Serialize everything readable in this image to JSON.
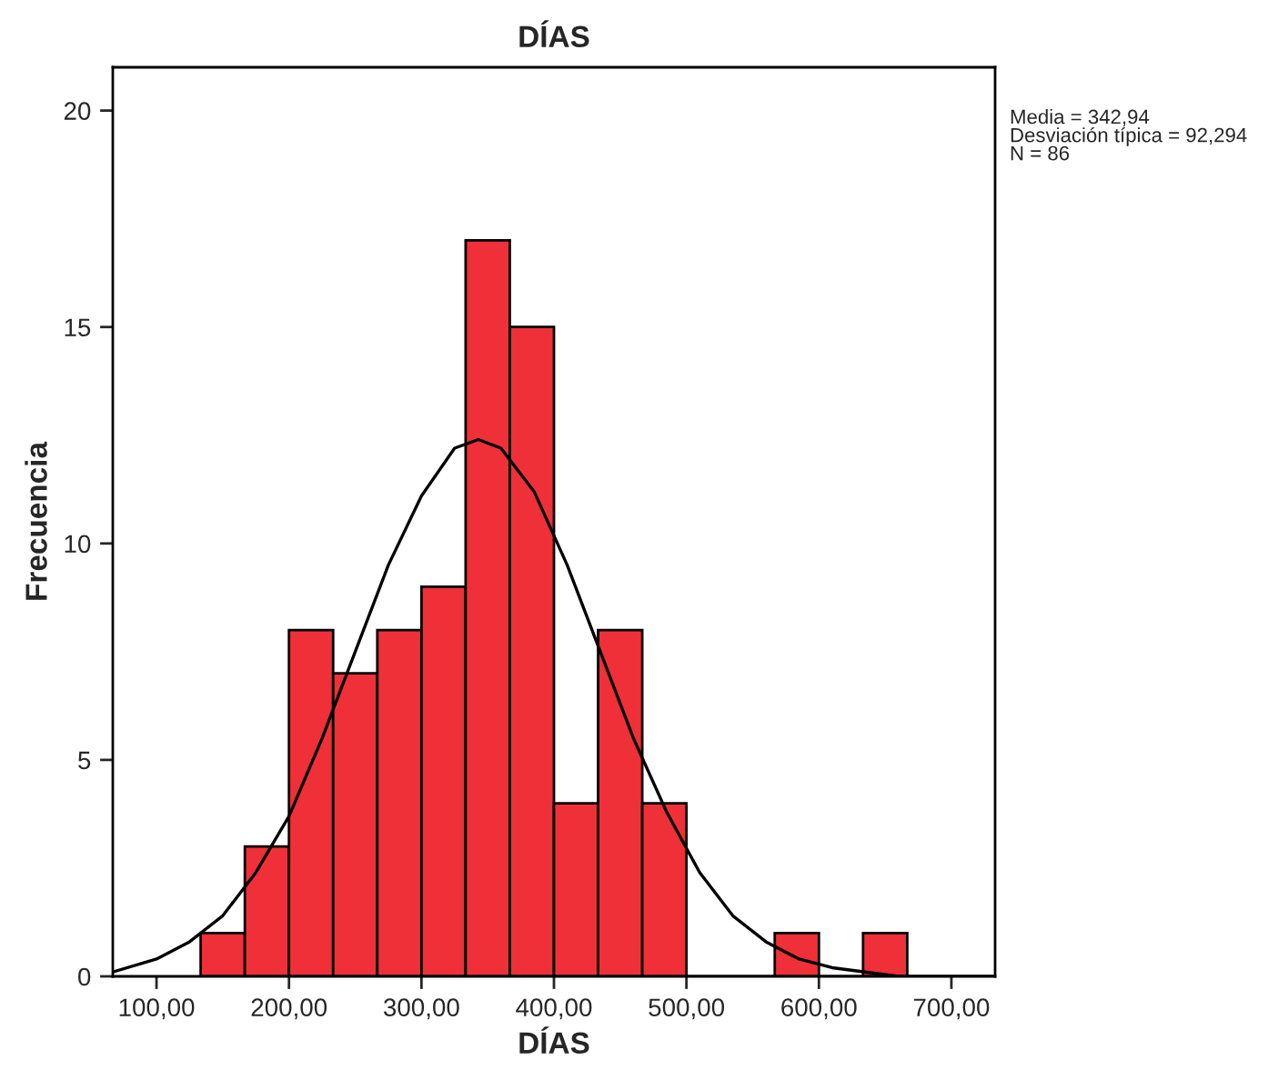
{
  "chart_data": {
    "type": "histogram",
    "title": "DÍAS",
    "xlabel": "DÍAS",
    "ylabel": "Frecuencia",
    "series": [
      {
        "color": "#ef3038",
        "bins": [
          133.33,
          166.67,
          200,
          233.33,
          266.67,
          300,
          333.33,
          366.67,
          400,
          433.33,
          466.67,
          500,
          533.33,
          566.67,
          600,
          633.33,
          666.67
        ],
        "values": [
          1,
          3,
          8,
          7,
          8,
          9,
          17,
          15,
          4,
          8,
          4,
          0,
          0,
          1,
          0,
          1
        ]
      },
      {
        "type": "line",
        "color": "#000000",
        "x": [
          67,
          100,
          125,
          150,
          175,
          200,
          225,
          250,
          275,
          300,
          325,
          343,
          360,
          385,
          410,
          435,
          460,
          485,
          510,
          535,
          560,
          585,
          610,
          635,
          660,
          685,
          733
        ],
        "values": [
          0.1,
          0.4,
          0.8,
          1.4,
          2.4,
          3.7,
          5.5,
          7.5,
          9.5,
          11.1,
          12.2,
          12.4,
          12.2,
          11.2,
          9.5,
          7.5,
          5.5,
          3.8,
          2.4,
          1.4,
          0.8,
          0.4,
          0.2,
          0.1,
          0,
          0,
          0
        ]
      }
    ],
    "xlim": [
      67,
      733
    ],
    "ylim": [
      0,
      21
    ],
    "xticks": [
      {
        "value": 100,
        "label": "100,00"
      },
      {
        "value": 200,
        "label": "200,00"
      },
      {
        "value": 300,
        "label": "300,00"
      },
      {
        "value": 400,
        "label": "400,00"
      },
      {
        "value": 500,
        "label": "500,00"
      },
      {
        "value": 600,
        "label": "600,00"
      },
      {
        "value": 700,
        "label": "700,00"
      }
    ],
    "yticks": [
      0,
      5,
      10,
      15,
      20
    ],
    "annotations": [
      "Media = 342,94\nDesviación típica = 92,294\nN = 86"
    ]
  }
}
